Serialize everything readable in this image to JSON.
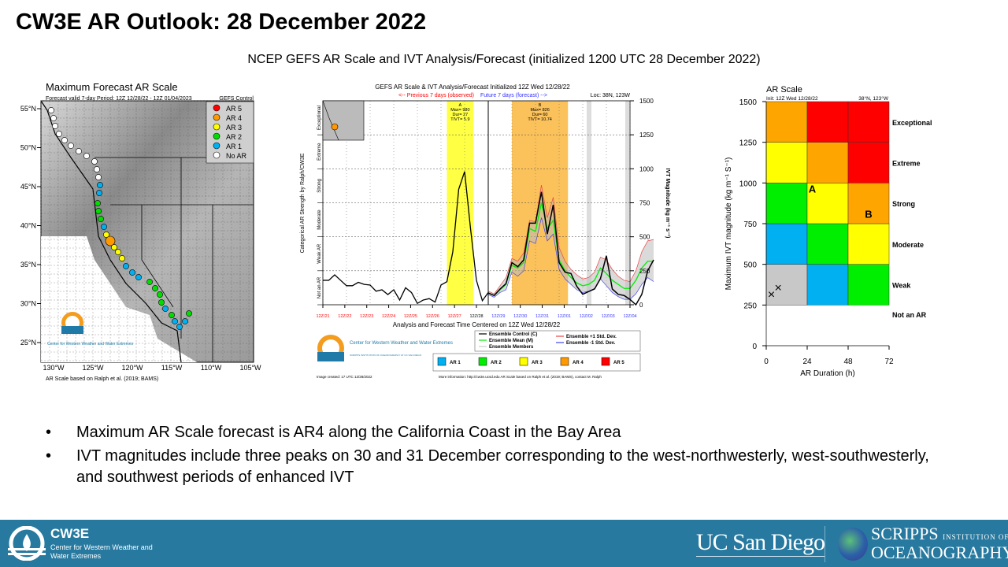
{
  "slide": {
    "title": "CW3E AR Outlook: 28 December 2022",
    "subtitle": "NCEP GEFS AR Scale and IVT Analysis/Forecast (initialized 1200 UTC 28 December 2022)",
    "bullets": [
      "Maximum AR Scale forecast is AR4 along the California Coast in the Bay Area",
      "IVT magnitudes include three peaks on 30 and 31 December corresponding to the west-northwesterly, west-southwesterly, and southwest periods of enhanced IVT"
    ]
  },
  "map_panel": {
    "title": "Maximum Forecast AR Scale",
    "valid": "Forecast valid 7-day Period: 12Z 12/28/22 - 12Z 01/04/2023",
    "model": "GEFS Control",
    "legend": [
      {
        "label": "AR 5",
        "color": "#ff0000"
      },
      {
        "label": "AR 4",
        "color": "#ff9900"
      },
      {
        "label": "AR 3",
        "color": "#ffff00"
      },
      {
        "label": "AR 2",
        "color": "#00dd00"
      },
      {
        "label": "AR 1",
        "color": "#00b0f0"
      },
      {
        "label": "No AR",
        "color": "#ffffff"
      }
    ],
    "lat_labels": [
      "55°N",
      "50°N",
      "45°N",
      "40°N",
      "35°N",
      "30°N",
      "25°N"
    ],
    "lon_labels": [
      "130°W",
      "125°W",
      "120°W",
      "115°W",
      "110°W",
      "105°W"
    ],
    "footnote": "AR Scale based on Ralph et al. (2019; BAMS)",
    "logo_text": "Center for Western Weather and Water Extremes"
  },
  "chart_data": [
    {
      "type": "line",
      "title": "GEFS AR Scale & IVT Analysis/Forecast Initialized 12Z Wed 12/28/22",
      "previous_label": "<-- Previous 7 days (observed)",
      "future_label": "Future 7 days (forecast) -->",
      "location": "Loc: 38N, 123W",
      "xlabel": "Analysis and Forecast Time Centered on 12Z Wed 12/28/22",
      "ylabel_left": "Categorical AR Strength by Ralph/CW3E",
      "ylabel_right": "IVT Magnitude (kg m⁻¹ s⁻¹)",
      "ylim": [
        0,
        1500
      ],
      "yticks": [
        "0",
        "250",
        "500",
        "750",
        "1000",
        "1250",
        "1500"
      ],
      "categories_left": [
        "Not an AR",
        "Weak AR",
        "Moderate",
        "Strong",
        "Extreme",
        "Exceptional"
      ],
      "xticks": [
        {
          "label": "12Z/21",
          "color": "#ff0000"
        },
        {
          "label": "12Z/22",
          "color": "#ff0000"
        },
        {
          "label": "12Z/23",
          "color": "#ff0000"
        },
        {
          "label": "12Z/24",
          "color": "#ff0000"
        },
        {
          "label": "12Z/25",
          "color": "#ff0000"
        },
        {
          "label": "12Z/26",
          "color": "#ff0000"
        },
        {
          "label": "12Z/27",
          "color": "#ff0000"
        },
        {
          "label": "12Z/28",
          "color": "#000000"
        },
        {
          "label": "12Z/29",
          "color": "#3333ff"
        },
        {
          "label": "12Z/30",
          "color": "#3333ff"
        },
        {
          "label": "12Z/31",
          "color": "#3333ff"
        },
        {
          "label": "12Z/01",
          "color": "#3333ff"
        },
        {
          "label": "12Z/02",
          "color": "#3333ff"
        },
        {
          "label": "12Z/03",
          "color": "#3333ff"
        },
        {
          "label": "12Z/04",
          "color": "#3333ff"
        }
      ],
      "ar_events": [
        {
          "id": "A",
          "max": "Max= 980",
          "dur": "Dur= 27",
          "tivt": "TIVT= 5.9",
          "category": "AR 3",
          "color": "#ffff44",
          "start": "12/26 18Z",
          "end": "12/27 21Z"
        },
        {
          "id": "B",
          "max": "Max= 826",
          "dur": "Dur= 60",
          "tivt": "TIVT= 10.74",
          "category": "AR 4",
          "color": "#fbc15a",
          "start": "12/29 12Z",
          "end": "12/31 21Z"
        }
      ],
      "observed_x": [
        "12/21 12Z",
        "12/21 18Z",
        "12/22 00Z",
        "12/22 06Z",
        "12/22 12Z",
        "12/22 18Z",
        "12/23 00Z",
        "12/23 06Z",
        "12/23 12Z",
        "12/23 18Z",
        "12/24 00Z",
        "12/24 06Z",
        "12/24 12Z",
        "12/24 18Z",
        "12/25 00Z",
        "12/25 06Z",
        "12/25 12Z",
        "12/25 18Z",
        "12/26 00Z",
        "12/26 06Z",
        "12/26 12Z",
        "12/26 18Z",
        "12/27 00Z",
        "12/27 06Z",
        "12/27 12Z",
        "12/27 18Z",
        "12/28 00Z",
        "12/28 06Z",
        "12/28 12Z"
      ],
      "observed": [
        180,
        180,
        220,
        180,
        140,
        140,
        165,
        150,
        145,
        100,
        110,
        75,
        110,
        35,
        125,
        90,
        10,
        35,
        45,
        20,
        145,
        170,
        390,
        850,
        980,
        560,
        180,
        30,
        90
      ],
      "forecast_x": [
        "12/28 12Z",
        "12/28 18Z",
        "12/29 00Z",
        "12/29 06Z",
        "12/29 12Z",
        "12/29 18Z",
        "12/30 00Z",
        "12/30 06Z",
        "12/30 12Z",
        "12/30 18Z",
        "12/31 00Z",
        "12/31 06Z",
        "12/31 12Z",
        "12/31 18Z",
        "01/01 00Z",
        "01/01 06Z",
        "01/01 12Z",
        "01/01 18Z",
        "01/02 00Z",
        "01/02 06Z",
        "01/02 12Z",
        "01/02 18Z",
        "01/03 00Z",
        "01/03 06Z",
        "01/03 12Z",
        "01/03 18Z",
        "01/04 00Z",
        "01/04 06Z",
        "01/04 12Z"
      ],
      "series": [
        {
          "name": "Ensemble Control (C)",
          "color": "#000000",
          "values": [
            87,
            68,
            116,
            155,
            310,
            280,
            330,
            600,
            600,
            830,
            520,
            735,
            310,
            240,
            230,
            135,
            77,
            97,
            116,
            193,
            360,
            116,
            77,
            68,
            39,
            0,
            77,
            250,
            330
          ]
        },
        {
          "name": "Ensemble Mean (M)",
          "color": "#00ee00",
          "values": [
            87,
            68,
            110,
            150,
            290,
            270,
            310,
            560,
            540,
            750,
            560,
            620,
            330,
            250,
            200,
            160,
            140,
            150,
            180,
            270,
            230,
            180,
            150,
            120,
            120,
            180,
            270,
            320,
            320
          ]
        },
        {
          "name": "Ensemble +1 Std. Dev.",
          "color": "#ee4444",
          "values": [
            100,
            80,
            140,
            200,
            340,
            320,
            380,
            620,
            610,
            880,
            640,
            790,
            420,
            320,
            260,
            220,
            190,
            200,
            240,
            350,
            330,
            260,
            210,
            180,
            170,
            250,
            390,
            470,
            480
          ]
        },
        {
          "name": "Ensemble -1 Std. Dev.",
          "color": "#4444ee",
          "values": [
            75,
            55,
            90,
            110,
            240,
            210,
            250,
            470,
            450,
            640,
            470,
            520,
            260,
            190,
            150,
            110,
            90,
            100,
            120,
            190,
            140,
            90,
            60,
            40,
            40,
            80,
            150,
            200,
            170
          ]
        }
      ],
      "legend_members": "Ensemble Members",
      "ar_legend": [
        {
          "label": "AR 1",
          "color": "#00b0f0"
        },
        {
          "label": "AR 2",
          "color": "#00ee00"
        },
        {
          "label": "AR 3",
          "color": "#ffff00"
        },
        {
          "label": "AR 4",
          "color": "#ff9900"
        },
        {
          "label": "AR 5",
          "color": "#ff0000"
        }
      ],
      "image_created": "Image created: 17 UTC 12/28/2022",
      "more_info": "More information: http://cw3e.ucsd.edu  AR Scale based on Ralph et al. (2019; BAMS), contact M. Ralph",
      "logo_text": "Center for Western Weather and Water Extremes",
      "logo_subtext": "SCRIPPS INSTITUTION OF OCEANOGRAPHY AT UC SAN DIEGO"
    },
    {
      "type": "heatmap",
      "title": "AR Scale",
      "init": "Init: 12Z Wed 12/28/22",
      "location": "38°N, 123°W",
      "xlabel": "AR Duration (h)",
      "ylabel": "Maximum IVT magnitude (kg m⁻¹ S⁻¹)",
      "xticks": [
        "0",
        "24",
        "48",
        "72"
      ],
      "yticks": [
        "0",
        "250",
        "500",
        "750",
        "1000",
        "1250",
        "1500"
      ],
      "xlim": [
        0,
        72
      ],
      "ylim": [
        0,
        1500
      ],
      "row_labels": [
        "Not an AR",
        "Weak",
        "Moderate",
        "Strong",
        "Extreme",
        "Exceptional"
      ],
      "cells_bottom_to_top": [
        [
          "#ffffff",
          "#ffffff",
          "#ffffff"
        ],
        [
          "#c8c8c8",
          "#00b0f0",
          "#00ee00"
        ],
        [
          "#00b0f0",
          "#00ee00",
          "#ffff00"
        ],
        [
          "#00ee00",
          "#ffff00",
          "#ffa500"
        ],
        [
          "#ffff00",
          "#ffa500",
          "#ff0000"
        ],
        [
          "#ffa500",
          "#ff0000",
          "#ff0000"
        ]
      ],
      "events": [
        {
          "label": "A",
          "duration": 27,
          "ivt": 980
        },
        {
          "label": "B",
          "duration": 60,
          "ivt": 826
        }
      ],
      "markers": [
        {
          "label": "×",
          "duration": 3,
          "ivt": 320
        },
        {
          "label": "×",
          "duration": 7,
          "ivt": 360
        }
      ]
    }
  ],
  "footer": {
    "cw3e_name": "CW3E",
    "cw3e_full": "Center for Western Weather and Water Extremes",
    "ucsd": "UC San Diego",
    "scripps_main": "SCRIPPS",
    "scripps_small": "INSTITUTION OF",
    "scripps_line2": "OCEANOGRAPHY"
  }
}
